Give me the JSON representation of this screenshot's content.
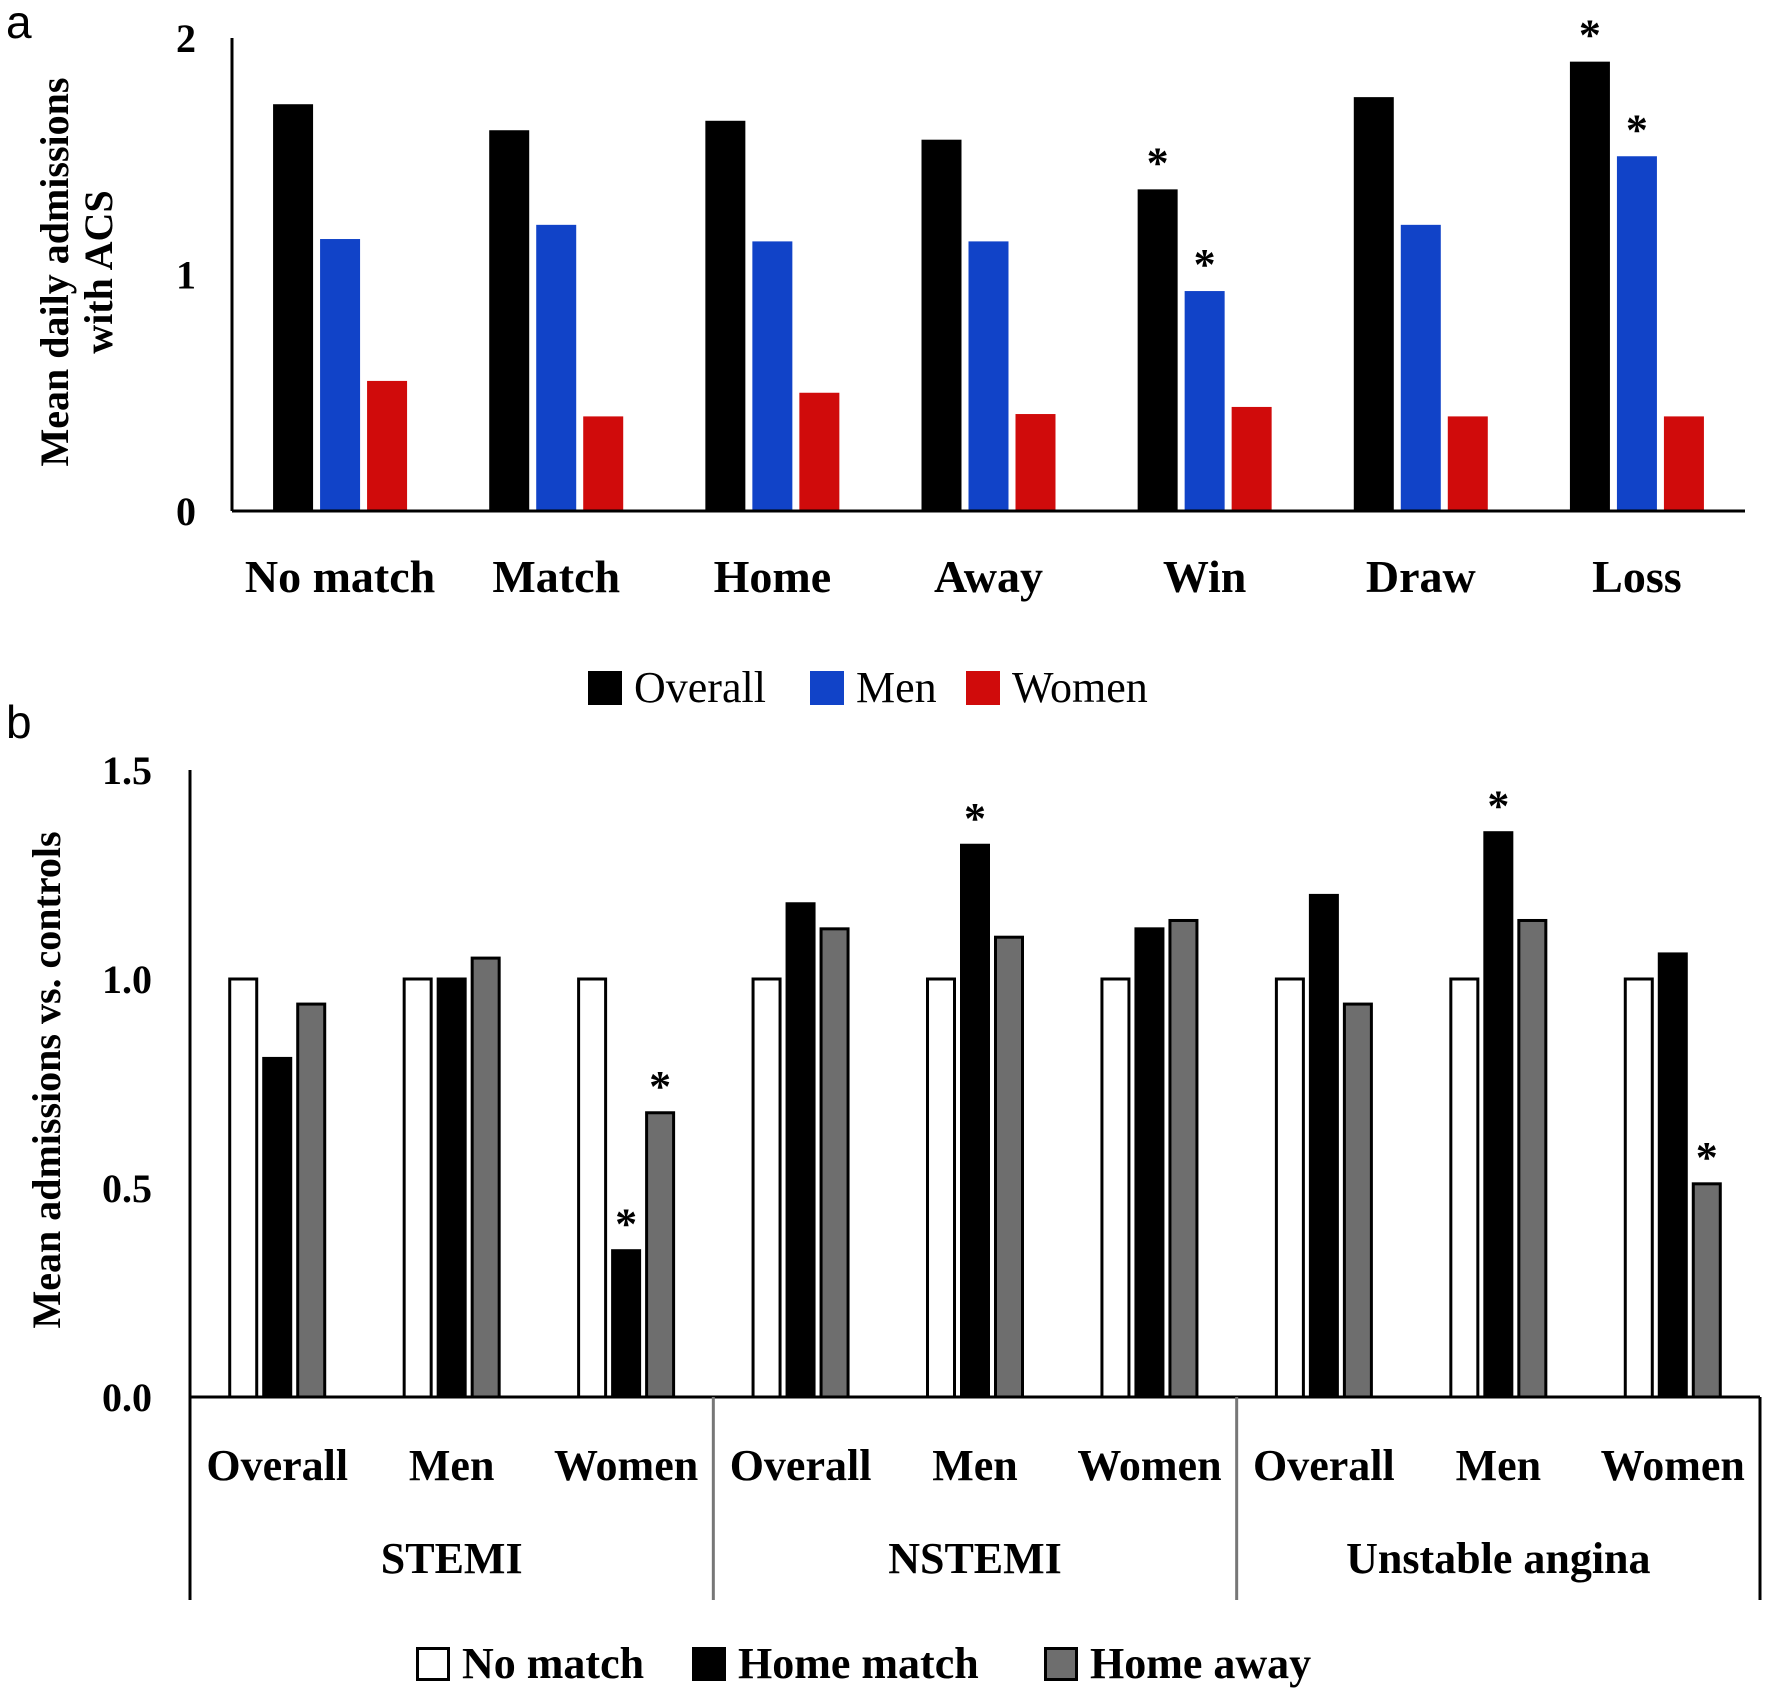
{
  "panels": [
    {
      "panel_label": "a",
      "chart_data": {
        "type": "bar",
        "ylabel_lines": [
          "Mean daily admissions",
          "with ACS"
        ],
        "ylim": [
          0,
          2
        ],
        "yticks": [
          0,
          1,
          2
        ],
        "ytick_labels": [
          "0",
          "1",
          "2"
        ],
        "categories": [
          "No match",
          "Match",
          "Home",
          "Away",
          "Win",
          "Draw",
          "Loss"
        ],
        "series": [
          {
            "name": "Overall",
            "color": "#000000",
            "values": [
              1.72,
              1.61,
              1.65,
              1.57,
              1.36,
              1.75,
              1.9
            ]
          },
          {
            "name": "Men",
            "color": "#1143c8",
            "values": [
              1.15,
              1.21,
              1.14,
              1.14,
              0.93,
              1.21,
              1.5
            ]
          },
          {
            "name": "Women",
            "color": "#d00b0b",
            "values": [
              0.55,
              0.4,
              0.5,
              0.41,
              0.44,
              0.4,
              0.4
            ]
          }
        ],
        "annotations": [
          {
            "text": "*",
            "series": 0,
            "category": 4
          },
          {
            "text": "*",
            "series": 1,
            "category": 4
          },
          {
            "text": "*",
            "series": 0,
            "category": 6
          },
          {
            "text": "*",
            "series": 1,
            "category": 6
          }
        ],
        "legend_position": "bottom",
        "grid": false
      }
    },
    {
      "panel_label": "b",
      "chart_data": {
        "type": "bar",
        "ylabel": "Mean admissions vs. controls",
        "ylim": [
          0,
          1.5
        ],
        "yticks": [
          0,
          0.5,
          1.0,
          1.5
        ],
        "ytick_labels": [
          "0.0",
          "0.5",
          "1.0",
          "1.5"
        ],
        "categories": [
          "Overall",
          "Men",
          "Women",
          "Overall",
          "Men",
          "Women",
          "Overall",
          "Men",
          "Women"
        ],
        "groups": [
          "STEMI",
          "NSTEMI",
          "Unstable angina"
        ],
        "series": [
          {
            "name": "No match",
            "color": "#ffffff",
            "values": [
              1.0,
              1.0,
              1.0,
              1.0,
              1.0,
              1.0,
              1.0,
              1.0,
              1.0
            ]
          },
          {
            "name": "Home match",
            "color": "#000000",
            "values": [
              0.81,
              1.0,
              0.35,
              1.18,
              1.32,
              1.12,
              1.2,
              1.35,
              1.06
            ]
          },
          {
            "name": "Home away",
            "color": "#6e6e6e",
            "values": [
              0.94,
              1.05,
              0.68,
              1.12,
              1.1,
              1.14,
              0.94,
              1.14,
              0.51
            ]
          }
        ],
        "annotations": [
          {
            "text": "*",
            "series": 1,
            "category": 2
          },
          {
            "text": "*",
            "series": 2,
            "category": 2
          },
          {
            "text": "*",
            "series": 1,
            "category": 4
          },
          {
            "text": "*",
            "series": 1,
            "category": 7
          },
          {
            "text": "*",
            "series": 2,
            "category": 8
          }
        ],
        "legend_position": "bottom",
        "grid": false
      }
    }
  ]
}
